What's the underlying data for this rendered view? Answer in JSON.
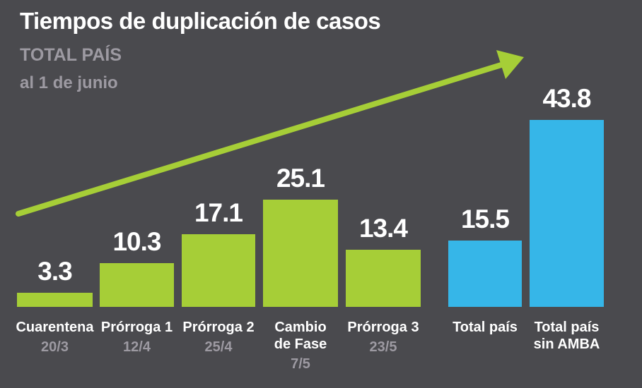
{
  "header": {
    "title": "Tiempos de duplicación de casos",
    "subtitle": "TOTAL PAÍS",
    "date_note": "al 1 de junio"
  },
  "colors": {
    "background": "#4a4a4e",
    "green": "#a6ce37",
    "blue": "#36b6e8",
    "text": "#ffffff",
    "muted_text": "#9d9aa2"
  },
  "chart_data": {
    "type": "bar",
    "title": "Tiempos de duplicación de casos",
    "subtitle": "TOTAL PAÍS",
    "annotation": "al 1 de junio",
    "categories": [
      "Cuarentena",
      "Prórroga 1",
      "Prórroga 2",
      "Cambio\nde Fase",
      "Prórroga 3",
      "Total país",
      "Total país\nsin AMBA"
    ],
    "sublabels": [
      "20/3",
      "12/4",
      "25/4",
      "7/5",
      "23/5",
      "",
      ""
    ],
    "values": [
      3.3,
      10.3,
      17.1,
      25.1,
      13.4,
      15.5,
      43.8
    ],
    "value_labels": [
      "3.3",
      "10.3",
      "17.1",
      "25.1",
      "13.4",
      "15.5",
      "43.8"
    ],
    "bar_colors": [
      "green",
      "green",
      "green",
      "green",
      "green",
      "blue",
      "blue"
    ],
    "ylim": [
      0,
      45
    ],
    "grid": false,
    "legend": false,
    "trend_arrow": "ascending"
  }
}
